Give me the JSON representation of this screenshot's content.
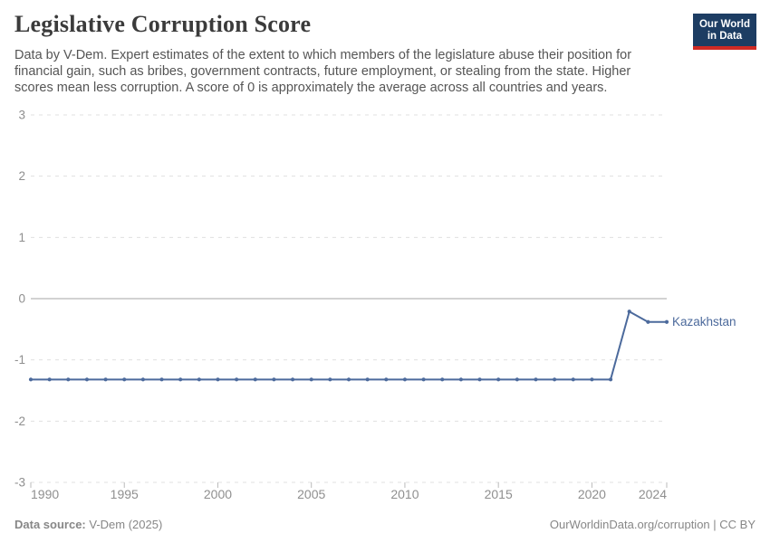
{
  "header": {
    "title": "Legislative Corruption Score",
    "subtitle_lines": [
      "Data by V-Dem. Expert estimates of the extent to which members of the legislature abuse their position for",
      "financial gain, such as bribes, government contracts, future employment, or stealing from the state. Higher",
      "scores mean less corruption. A score of 0 is approximately the average across all countries and years."
    ]
  },
  "logo": {
    "line1": "Our World",
    "line2": "in Data",
    "bg_color": "#1d3d63",
    "accent_color": "#d02a24"
  },
  "chart_data": {
    "type": "line",
    "title": "Legislative Corruption Score",
    "xlabel": "",
    "ylabel": "",
    "x": [
      1990,
      1991,
      1992,
      1993,
      1994,
      1995,
      1996,
      1997,
      1998,
      1999,
      2000,
      2001,
      2002,
      2003,
      2004,
      2005,
      2006,
      2007,
      2008,
      2009,
      2010,
      2011,
      2012,
      2013,
      2014,
      2015,
      2016,
      2017,
      2018,
      2019,
      2020,
      2021,
      2022,
      2023,
      2024
    ],
    "series": [
      {
        "name": "Kazakhstan",
        "color": "#4C6A9C",
        "values": [
          -1.32,
          -1.32,
          -1.32,
          -1.32,
          -1.32,
          -1.32,
          -1.32,
          -1.32,
          -1.32,
          -1.32,
          -1.32,
          -1.32,
          -1.32,
          -1.32,
          -1.32,
          -1.32,
          -1.32,
          -1.32,
          -1.32,
          -1.32,
          -1.32,
          -1.32,
          -1.32,
          -1.32,
          -1.32,
          -1.32,
          -1.32,
          -1.32,
          -1.32,
          -1.32,
          -1.32,
          -1.32,
          -0.21,
          -0.38,
          -0.38
        ]
      }
    ],
    "xlim": [
      1990,
      2024
    ],
    "ylim": [
      -3,
      3
    ],
    "yticks": [
      3,
      2,
      1,
      0,
      -1,
      -2,
      -3
    ],
    "xticks": [
      1990,
      1995,
      2000,
      2005,
      2010,
      2015,
      2020,
      2024
    ],
    "grid": "horizontal-dashed",
    "zero_line": true,
    "legend_position": "end-of-line-label",
    "end_label": "Kazakhstan"
  },
  "colors": {
    "series": "#4C6A9C",
    "grid": "#e0e0e0",
    "zero_line": "#a5a5a5",
    "tick": "#bbbbbb",
    "axis_text": "#8f8f8f"
  },
  "footer": {
    "source_label": "Data source:",
    "source_value": "V-Dem (2025)",
    "license": "OurWorldinData.org/corruption | CC BY"
  }
}
